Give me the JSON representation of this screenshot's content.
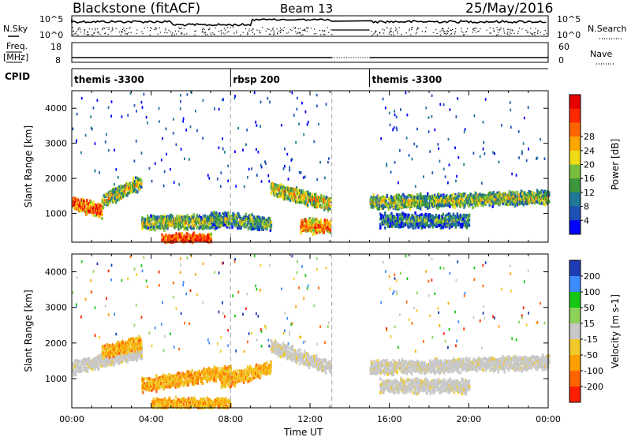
{
  "header": {
    "station": "Blackstone (fitACF)",
    "beam": "Beam 13",
    "date": "25/May/2016"
  },
  "top_panels": {
    "nsky_label": "N.Sky",
    "nsearch_label": "N.Search",
    "nsky_tick_top": "10^5",
    "nsky_tick_bottom": "10^0",
    "nsearch_tick_top": "10^5",
    "nsearch_tick_bottom": "10^0",
    "freq_label_line1": "Freq.",
    "freq_label_line2": "[MHz]",
    "freq_tick_top": "18",
    "freq_tick_bottom": "8",
    "nave_label": "Nave",
    "nave_tick_top": "60",
    "nave_tick_bottom": "0",
    "cpid_label": "CPID",
    "cpid_segments": [
      {
        "start_hour": 0.0,
        "label": "themis -3300"
      },
      {
        "start_hour": 8.0,
        "label": "rbsp 200"
      },
      {
        "start_hour": 15.0,
        "label": "themis -3300"
      }
    ]
  },
  "chart_data": [
    {
      "type": "heatmap",
      "name": "power",
      "ylabel": "Slant Range [km]",
      "xlabel": "",
      "xlim": [
        0,
        24
      ],
      "ylim": [
        180,
        4500
      ],
      "yticks": [
        1000,
        2000,
        3000,
        4000
      ],
      "colorbar_label": "Power [dB]",
      "colorbar_ticks": [
        "4",
        "8",
        "12",
        "16",
        "20",
        "24",
        "28"
      ],
      "colorbar_colors": [
        "#0000ff",
        "#1e50b4",
        "#1e7896",
        "#3c963c",
        "#78be3c",
        "#f0dc14",
        "#ffa500",
        "#ff6400",
        "#ff2800",
        "#e60000"
      ],
      "data_gap_hours": [
        13.1,
        15.0
      ],
      "echo_bands": [
        {
          "hour_start": 0.0,
          "hour_end": 1.5,
          "range_start": 1300,
          "range_end": 1050,
          "level": 0.85
        },
        {
          "hour_start": 1.5,
          "hour_end": 3.5,
          "range_start": 1350,
          "range_end": 1900,
          "level": 0.55
        },
        {
          "hour_start": 3.5,
          "hour_end": 7.5,
          "range_start": 720,
          "range_end": 760,
          "level": 0.5
        },
        {
          "hour_start": 4.5,
          "hour_end": 7.0,
          "range_start": 220,
          "range_end": 230,
          "level": 0.9
        },
        {
          "hour_start": 7.0,
          "hour_end": 10.0,
          "range_start": 850,
          "range_end": 700,
          "level": 0.45
        },
        {
          "hour_start": 10.0,
          "hour_end": 13.0,
          "range_start": 1700,
          "range_end": 1250,
          "level": 0.6
        },
        {
          "hour_start": 11.5,
          "hour_end": 13.0,
          "range_start": 650,
          "range_end": 600,
          "level": 0.8
        },
        {
          "hour_start": 15.0,
          "hour_end": 24.0,
          "range_start": 1300,
          "range_end": 1450,
          "level": 0.5
        },
        {
          "hour_start": 15.5,
          "hour_end": 20.0,
          "range_start": 800,
          "range_end": 780,
          "level": 0.35
        }
      ]
    },
    {
      "type": "heatmap",
      "name": "velocity",
      "ylabel": "Slant Range [km]",
      "xlabel": "Time UT",
      "xlim": [
        0,
        24
      ],
      "ylim": [
        180,
        4500
      ],
      "xticks": [
        "00:00",
        "04:00",
        "08:00",
        "12:00",
        "16:00",
        "20:00",
        "00:00"
      ],
      "yticks": [
        1000,
        2000,
        3000,
        4000
      ],
      "colorbar_label": "Velocity [m s-1]",
      "colorbar_ticks": [
        "200",
        "100",
        "50",
        "15",
        "-15",
        "-50",
        "-100",
        "-200"
      ],
      "colorbar_colors": [
        "#1e3cb4",
        "#3c8cff",
        "#14c814",
        "#8cd25a",
        "#c8c8c8",
        "#f0c828",
        "#ffa000",
        "#ff6400",
        "#ff1e00"
      ],
      "data_gap_hours": [
        13.1,
        15.0
      ],
      "echo_bands": [
        {
          "hour_start": 0.0,
          "hour_end": 3.5,
          "range_start": 1300,
          "range_end": 1750,
          "class": "ground"
        },
        {
          "hour_start": 1.5,
          "hour_end": 3.5,
          "range_start": 1750,
          "range_end": 2000,
          "class": "negative"
        },
        {
          "hour_start": 3.5,
          "hour_end": 8.0,
          "range_start": 800,
          "range_end": 1200,
          "class": "negative"
        },
        {
          "hour_start": 4.0,
          "hour_end": 8.0,
          "range_start": 260,
          "range_end": 260,
          "class": "negative"
        },
        {
          "hour_start": 7.5,
          "hour_end": 10.0,
          "range_start": 900,
          "range_end": 1300,
          "class": "negative"
        },
        {
          "hour_start": 10.0,
          "hour_end": 13.0,
          "range_start": 1900,
          "range_end": 1300,
          "class": "ground"
        },
        {
          "hour_start": 15.0,
          "hour_end": 24.0,
          "range_start": 1300,
          "range_end": 1450,
          "class": "ground"
        },
        {
          "hour_start": 15.5,
          "hour_end": 20.0,
          "range_start": 800,
          "range_end": 780,
          "class": "ground"
        }
      ]
    }
  ]
}
